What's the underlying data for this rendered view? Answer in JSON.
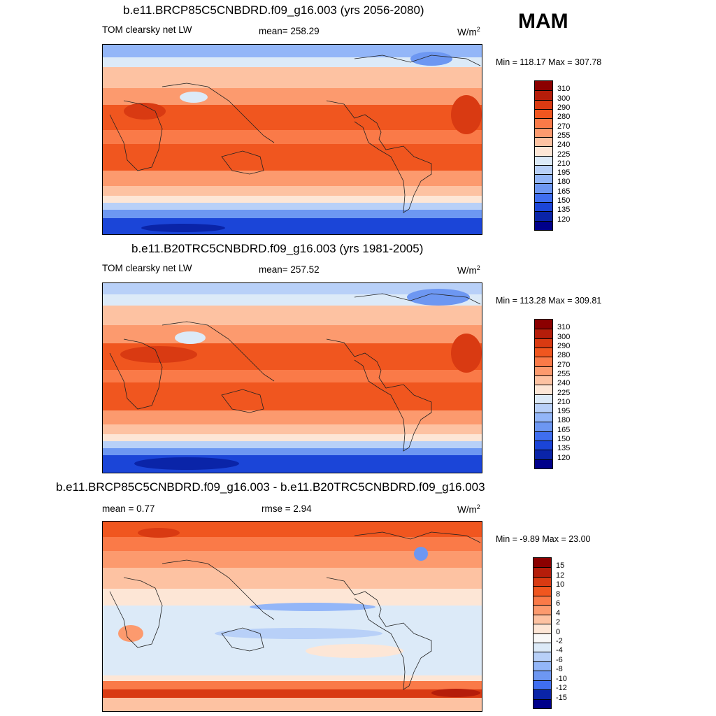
{
  "season": "MAM",
  "panels": [
    {
      "title": "b.e11.BRCP85C5CNBDRD.f09_g16.003 (yrs 2056-2080)",
      "left_label": "TOM clearsky net LW",
      "center_label": "mean= 258.29",
      "units": "W/m",
      "units_sup": "2",
      "minmax": "Min = 118.17 Max = 307.78",
      "levels": [
        "310",
        "300",
        "290",
        "280",
        "270",
        "255",
        "240",
        "225",
        "210",
        "195",
        "180",
        "165",
        "150",
        "135",
        "120"
      ],
      "colors": [
        "#8b0000",
        "#b51d0a",
        "#d93a12",
        "#f0561f",
        "#fa7a48",
        "#fc9a6e",
        "#fdc2a2",
        "#fde6d6",
        "#dceaf8",
        "#b8d0f8",
        "#93b6f8",
        "#6d97f2",
        "#3f6ef0",
        "#1b45d8",
        "#0a24a8",
        "#00008a"
      ]
    },
    {
      "title": "b.e11.B20TRC5CNBDRD.f09_g16.003 (yrs 1981-2005)",
      "left_label": "TOM clearsky net LW",
      "center_label": "mean= 257.52",
      "units": "W/m",
      "units_sup": "2",
      "minmax": "Min = 113.28 Max = 309.81",
      "levels": [
        "310",
        "300",
        "290",
        "280",
        "270",
        "255",
        "240",
        "225",
        "210",
        "195",
        "180",
        "165",
        "150",
        "135",
        "120"
      ],
      "colors": [
        "#8b0000",
        "#b51d0a",
        "#d93a12",
        "#f0561f",
        "#fa7a48",
        "#fc9a6e",
        "#fdc2a2",
        "#fde6d6",
        "#dceaf8",
        "#b8d0f8",
        "#93b6f8",
        "#6d97f2",
        "#3f6ef0",
        "#1b45d8",
        "#0a24a8",
        "#00008a"
      ]
    },
    {
      "title": "b.e11.BRCP85C5CNBDRD.f09_g16.003 - b.e11.B20TRC5CNBDRD.f09_g16.003",
      "left_label": "mean =   0.77",
      "center_label": "rmse =   2.94",
      "units": "W/m",
      "units_sup": "2",
      "minmax": "Min =  -9.89 Max =  23.00",
      "levels": [
        "15",
        "12",
        "10",
        "8",
        "6",
        "4",
        "2",
        "0",
        "-2",
        "-4",
        "-6",
        "-8",
        "-10",
        "-12",
        "-15"
      ],
      "colors": [
        "#8b0000",
        "#b51d0a",
        "#d93a12",
        "#f0561f",
        "#fa7a48",
        "#fc9a6e",
        "#fdc2a2",
        "#fde6d6",
        "#f8f8f8",
        "#dceaf8",
        "#b8d0f8",
        "#93b6f8",
        "#6d97f2",
        "#3f6ef0",
        "#0a24a8",
        "#00008a"
      ]
    }
  ]
}
